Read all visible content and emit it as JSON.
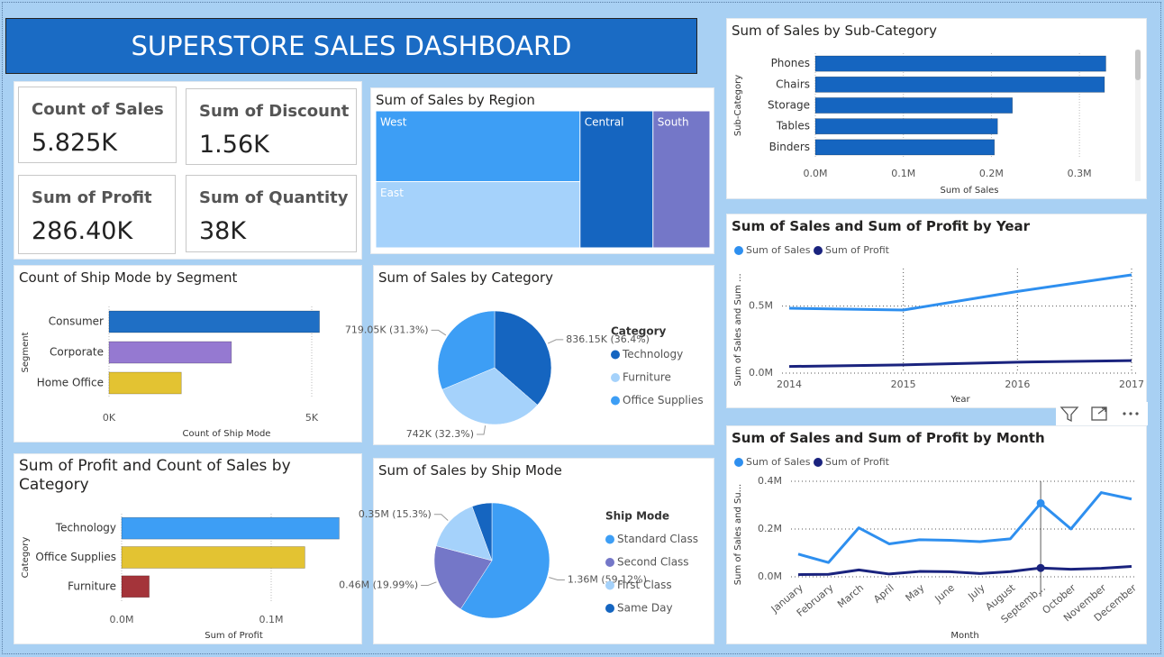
{
  "title": "SUPERSTORE SALES DASHBOARD",
  "kpis": [
    {
      "label": "Count of Sales",
      "value": "5.825K"
    },
    {
      "label": "Sum of Discount",
      "value": "1.56K"
    },
    {
      "label": "Sum of Profit",
      "value": "286.40K"
    },
    {
      "label": "Sum of Quantity",
      "value": "38K"
    }
  ],
  "chart_data": [
    {
      "type": "treemap",
      "title": "Sum of Sales by Region",
      "categories": [
        "West",
        "East",
        "Central",
        "South"
      ],
      "values": [
        725458,
        678781,
        501240,
        391722
      ],
      "colors": [
        "#3d9ef5",
        "#a5d2fb",
        "#1565c0",
        "#7477c8"
      ]
    },
    {
      "type": "hbar",
      "title": "Count of Ship Mode by Segment",
      "categories": [
        "Consumer",
        "Corporate",
        "Home Office"
      ],
      "values": [
        5191,
        3020,
        1783
      ],
      "colors": [
        "#1f6fc5",
        "#9579d1",
        "#e3c332"
      ],
      "xlim": [
        0,
        5800
      ],
      "xticks": [
        {
          "value": 0,
          "label": "0K"
        },
        {
          "value": 5000,
          "label": "5K"
        }
      ],
      "xlabel": "Count of Ship Mode",
      "ylabel": "Segment",
      "grid": true
    },
    {
      "type": "pie",
      "title": "Sum of Sales by Category",
      "legend_title": "Category",
      "categories": [
        "Technology",
        "Furniture",
        "Office Supplies"
      ],
      "values": [
        836154,
        741999,
        719047
      ],
      "value_labels": [
        "836.15K (36.4%)",
        "742K (32.3%)",
        "719.05K (31.3%)"
      ],
      "colors": [
        "#1565c0",
        "#a5d2fb",
        "#3d9ef5"
      ]
    },
    {
      "type": "hbar",
      "title": "Sum of Profit and Count of Sales by Category",
      "categories": [
        "Technology",
        "Office Supplies",
        "Furniture"
      ],
      "values": [
        145455,
        122491,
        18451
      ],
      "colors": [
        "#3d9ef5",
        "#e3c332",
        "#a4343a"
      ],
      "xlim": [
        0,
        150000
      ],
      "xticks": [
        {
          "value": 0,
          "label": "0.0M"
        },
        {
          "value": 100000,
          "label": "0.1M"
        }
      ],
      "xlabel": "Sum of Profit",
      "ylabel": "Category",
      "grid": true
    },
    {
      "type": "pie",
      "title": "Sum of Sales by Ship Mode",
      "legend_title": "Ship Mode",
      "categories": [
        "Standard Class",
        "Second Class",
        "First Class",
        "Same Day"
      ],
      "values": [
        1358216,
        459194,
        351428,
        128363
      ],
      "value_labels": [
        "1.36M (59.12%)",
        "0.46M (19.99%)",
        "0.35M (15.3%)",
        null
      ],
      "colors": [
        "#3d9ef5",
        "#7477c8",
        "#a5d2fb",
        "#1565c0"
      ]
    },
    {
      "type": "hbar",
      "title": "Sum of Sales by Sub-Category",
      "categories": [
        "Phones",
        "Chairs",
        "Storage",
        "Tables",
        "Binders"
      ],
      "values": [
        330007,
        328449,
        223844,
        206966,
        203413
      ],
      "color": "#1565c0",
      "xlim": [
        0,
        350000
      ],
      "xticks": [
        {
          "value": 0,
          "label": "0.0M"
        },
        {
          "value": 100000,
          "label": "0.1M"
        },
        {
          "value": 200000,
          "label": "0.2M"
        },
        {
          "value": 300000,
          "label": "0.3M"
        }
      ],
      "xlabel": "Sum of Sales",
      "ylabel": "Sub-Category",
      "grid": true
    },
    {
      "type": "line",
      "title": "Sum of Sales and Sum of Profit by Year",
      "x": [
        2014,
        2015,
        2016,
        2017
      ],
      "xlim": [
        2014,
        2017
      ],
      "xticks": [
        2014,
        2015,
        2016,
        2017
      ],
      "series": [
        {
          "name": "Sum of Sales",
          "color": "#2e8fef",
          "values": [
            484247,
            470533,
            609206,
            733215
          ]
        },
        {
          "name": "Sum of Profit",
          "color": "#1a237e",
          "values": [
            49544,
            61619,
            81795,
            93439
          ]
        }
      ],
      "ylim": [
        0,
        780000
      ],
      "yticks": [
        {
          "value": 0,
          "label": "0.0M"
        },
        {
          "value": 500000,
          "label": "0.5M"
        }
      ],
      "xlabel": "Year",
      "ylabel": "Sum of Sales and Sum ...",
      "grid": true
    },
    {
      "type": "line",
      "title": "Sum of Sales and Sum of Profit by Month",
      "categories": [
        "January",
        "February",
        "March",
        "April",
        "May",
        "June",
        "July",
        "August",
        "Septemb...",
        "October",
        "November",
        "December"
      ],
      "series": [
        {
          "name": "Sum of Sales",
          "color": "#2e8fef",
          "values": [
            94925,
            59751,
            205005,
            137762,
            155029,
            152719,
            147238,
            159044,
            307650,
            200323,
            352461,
            325294
          ]
        },
        {
          "name": "Sum of Profit",
          "color": "#1a237e",
          "values": [
            9134,
            10295,
            28595,
            11588,
            22411,
            21285,
            13832,
            21777,
            36857,
            31785,
            35468,
            43370
          ]
        }
      ],
      "ylim": [
        0,
        430000
      ],
      "yticks": [
        {
          "value": 0,
          "label": "0.0M"
        },
        {
          "value": 200000,
          "label": "0.2M"
        },
        {
          "value": 400000,
          "label": "0.4M"
        }
      ],
      "xlabel": "Month",
      "ylabel": "Sum of Sales and Su...",
      "grid": true
    }
  ]
}
